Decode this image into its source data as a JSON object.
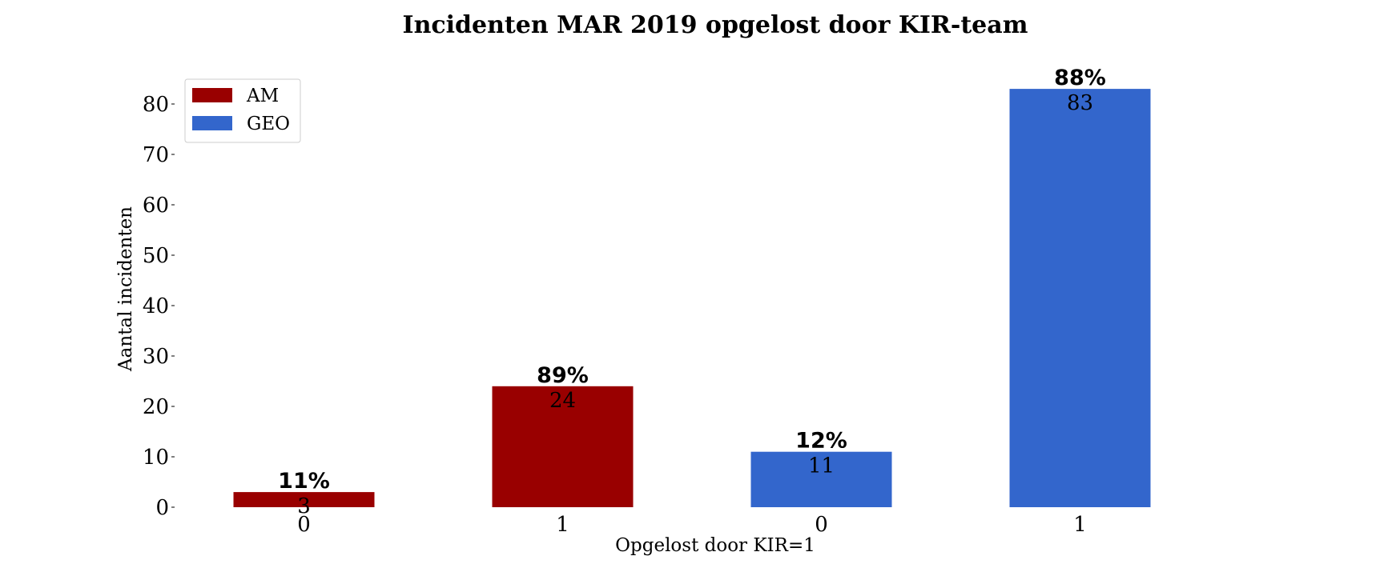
{
  "chart_data": {
    "type": "bar",
    "title": "Incidenten MAR 2019 opgelost door KIR-team",
    "xlabel": "Opgelost door KIR=1",
    "ylabel": "Aantal incidenten",
    "ylim": [
      0,
      88
    ],
    "yticks": [
      0,
      10,
      20,
      30,
      40,
      50,
      60,
      70,
      80
    ],
    "grid": false,
    "legend_position": "top-left",
    "categories": [
      "0",
      "1",
      "0",
      "1"
    ],
    "bars": [
      {
        "category": "0",
        "series": "AM",
        "value": 3,
        "percent_label": "11%",
        "value_label": "3"
      },
      {
        "category": "1",
        "series": "AM",
        "value": 24,
        "percent_label": "89%",
        "value_label": "24"
      },
      {
        "category": "0",
        "series": "GEO",
        "value": 11,
        "percent_label": "12%",
        "value_label": "11"
      },
      {
        "category": "1",
        "series": "GEO",
        "value": 83,
        "percent_label": "88%",
        "value_label": "83"
      }
    ],
    "series": [
      {
        "name": "AM",
        "color": "#990000"
      },
      {
        "name": "GEO",
        "color": "#3366cc"
      }
    ]
  }
}
